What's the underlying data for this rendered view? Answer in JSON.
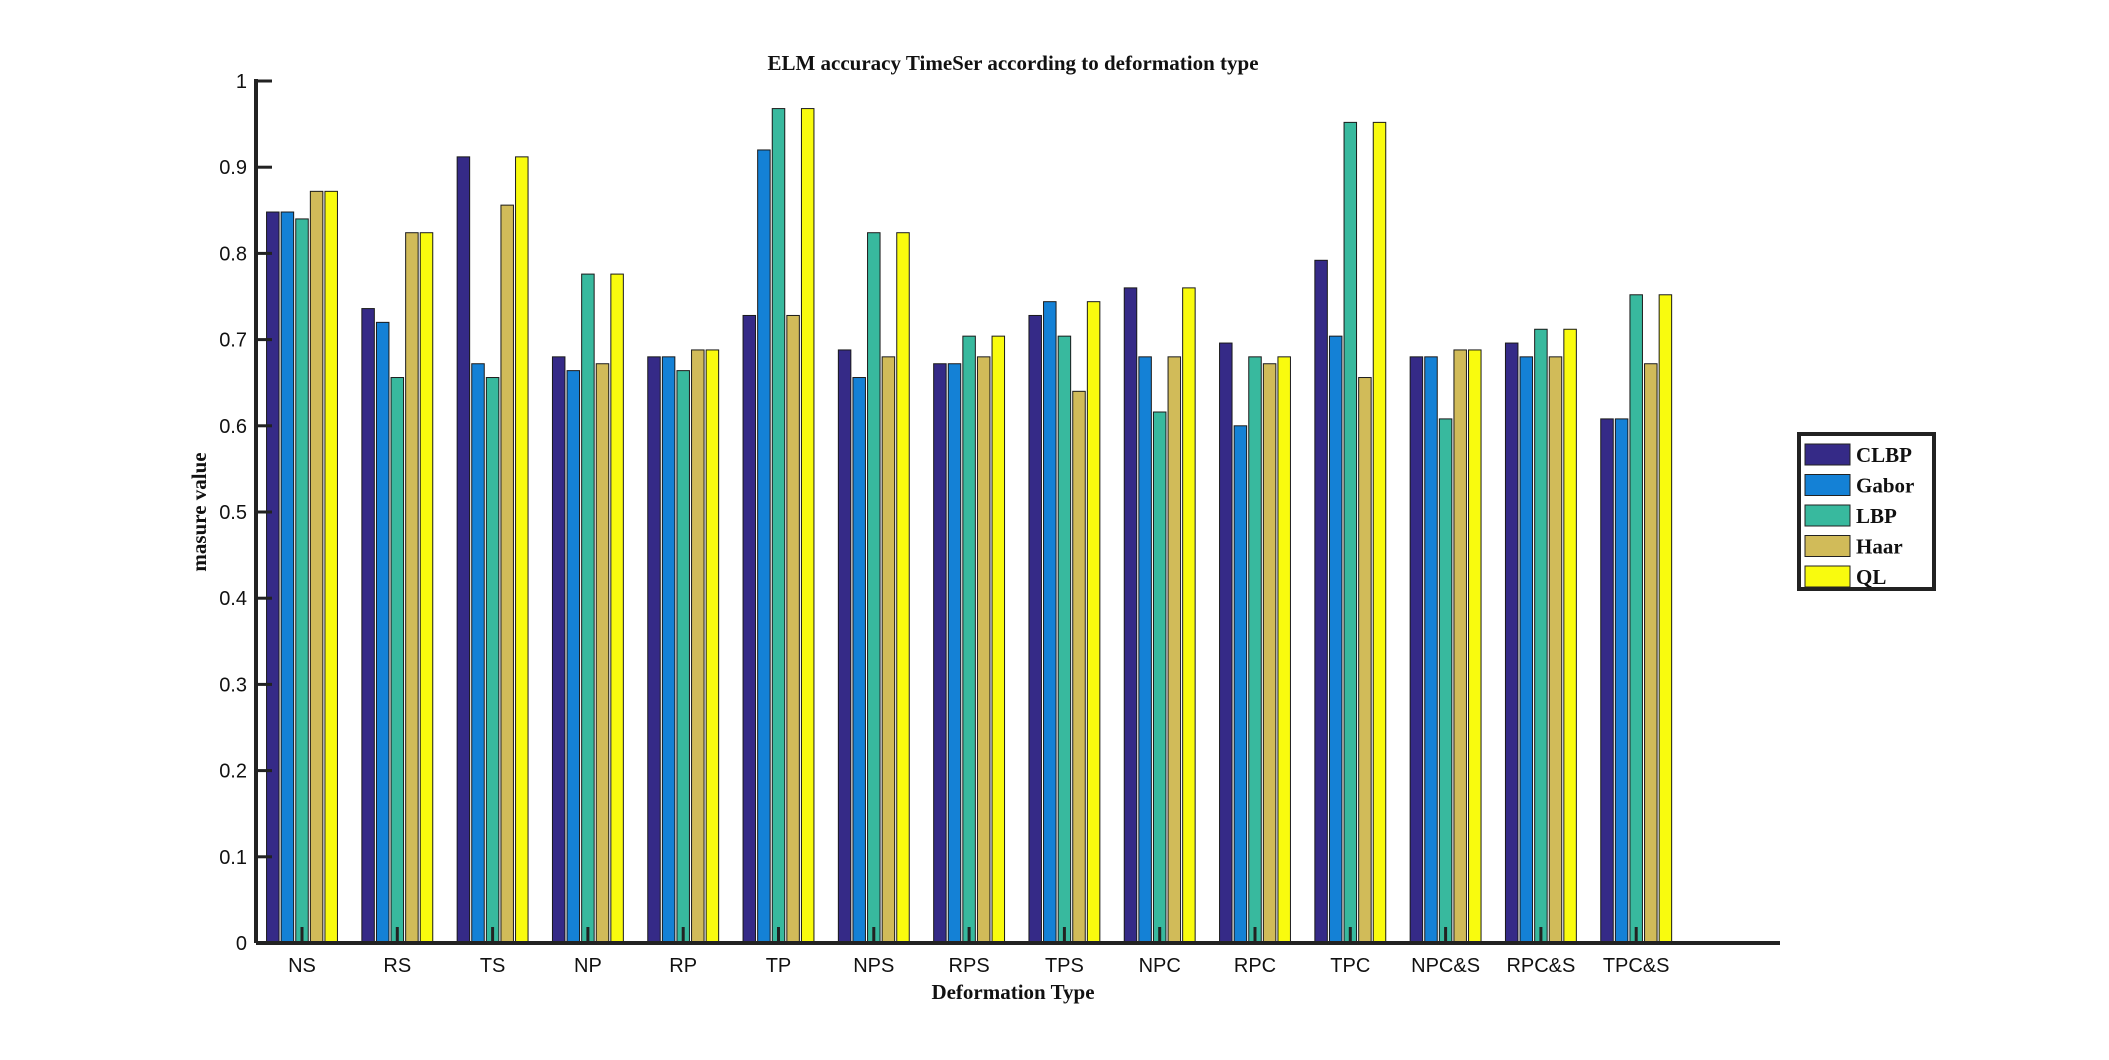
{
  "chart_data": {
    "type": "bar",
    "title": "ELM accuracy TimeSer according to deformation type",
    "xlabel": "Deformation Type",
    "ylabel": "masure value",
    "ylim": [
      0,
      1
    ],
    "yticks": [
      "0",
      "0.1",
      "0.2",
      "0.3",
      "0.4",
      "0.5",
      "0.6",
      "0.7",
      "0.8",
      "0.9",
      "1"
    ],
    "categories": [
      "NS",
      "RS",
      "TS",
      "NP",
      "RP",
      "TP",
      "NPS",
      "RPS",
      "TPS",
      "NPC",
      "RPC",
      "TPC",
      "NPC&S",
      "RPC&S",
      "TPC&S"
    ],
    "series": [
      {
        "name": "CLBP",
        "color": "#352a87",
        "values": [
          0.848,
          0.736,
          0.912,
          0.68,
          0.68,
          0.728,
          0.688,
          0.672,
          0.728,
          0.76,
          0.696,
          0.792,
          0.68,
          0.696,
          0.608
        ]
      },
      {
        "name": "Gabor",
        "color": "#1481d6",
        "values": [
          0.848,
          0.72,
          0.672,
          0.664,
          0.68,
          0.92,
          0.656,
          0.672,
          0.744,
          0.68,
          0.6,
          0.704,
          0.68,
          0.68,
          0.608
        ]
      },
      {
        "name": "LBP",
        "color": "#38b99e",
        "values": [
          0.84,
          0.656,
          0.656,
          0.776,
          0.664,
          0.968,
          0.824,
          0.704,
          0.704,
          0.616,
          0.68,
          0.952,
          0.608,
          0.712,
          0.752
        ]
      },
      {
        "name": "Haar",
        "color": "#d1bb59",
        "values": [
          0.872,
          0.824,
          0.856,
          0.672,
          0.688,
          0.728,
          0.68,
          0.68,
          0.64,
          0.68,
          0.672,
          0.656,
          0.688,
          0.68,
          0.672
        ]
      },
      {
        "name": "QL",
        "color": "#f9fb0e",
        "values": [
          0.872,
          0.824,
          0.912,
          0.776,
          0.688,
          0.968,
          0.824,
          0.704,
          0.744,
          0.76,
          0.68,
          0.952,
          0.688,
          0.712,
          0.752
        ]
      }
    ],
    "legend_position": "right",
    "grid": false
  }
}
